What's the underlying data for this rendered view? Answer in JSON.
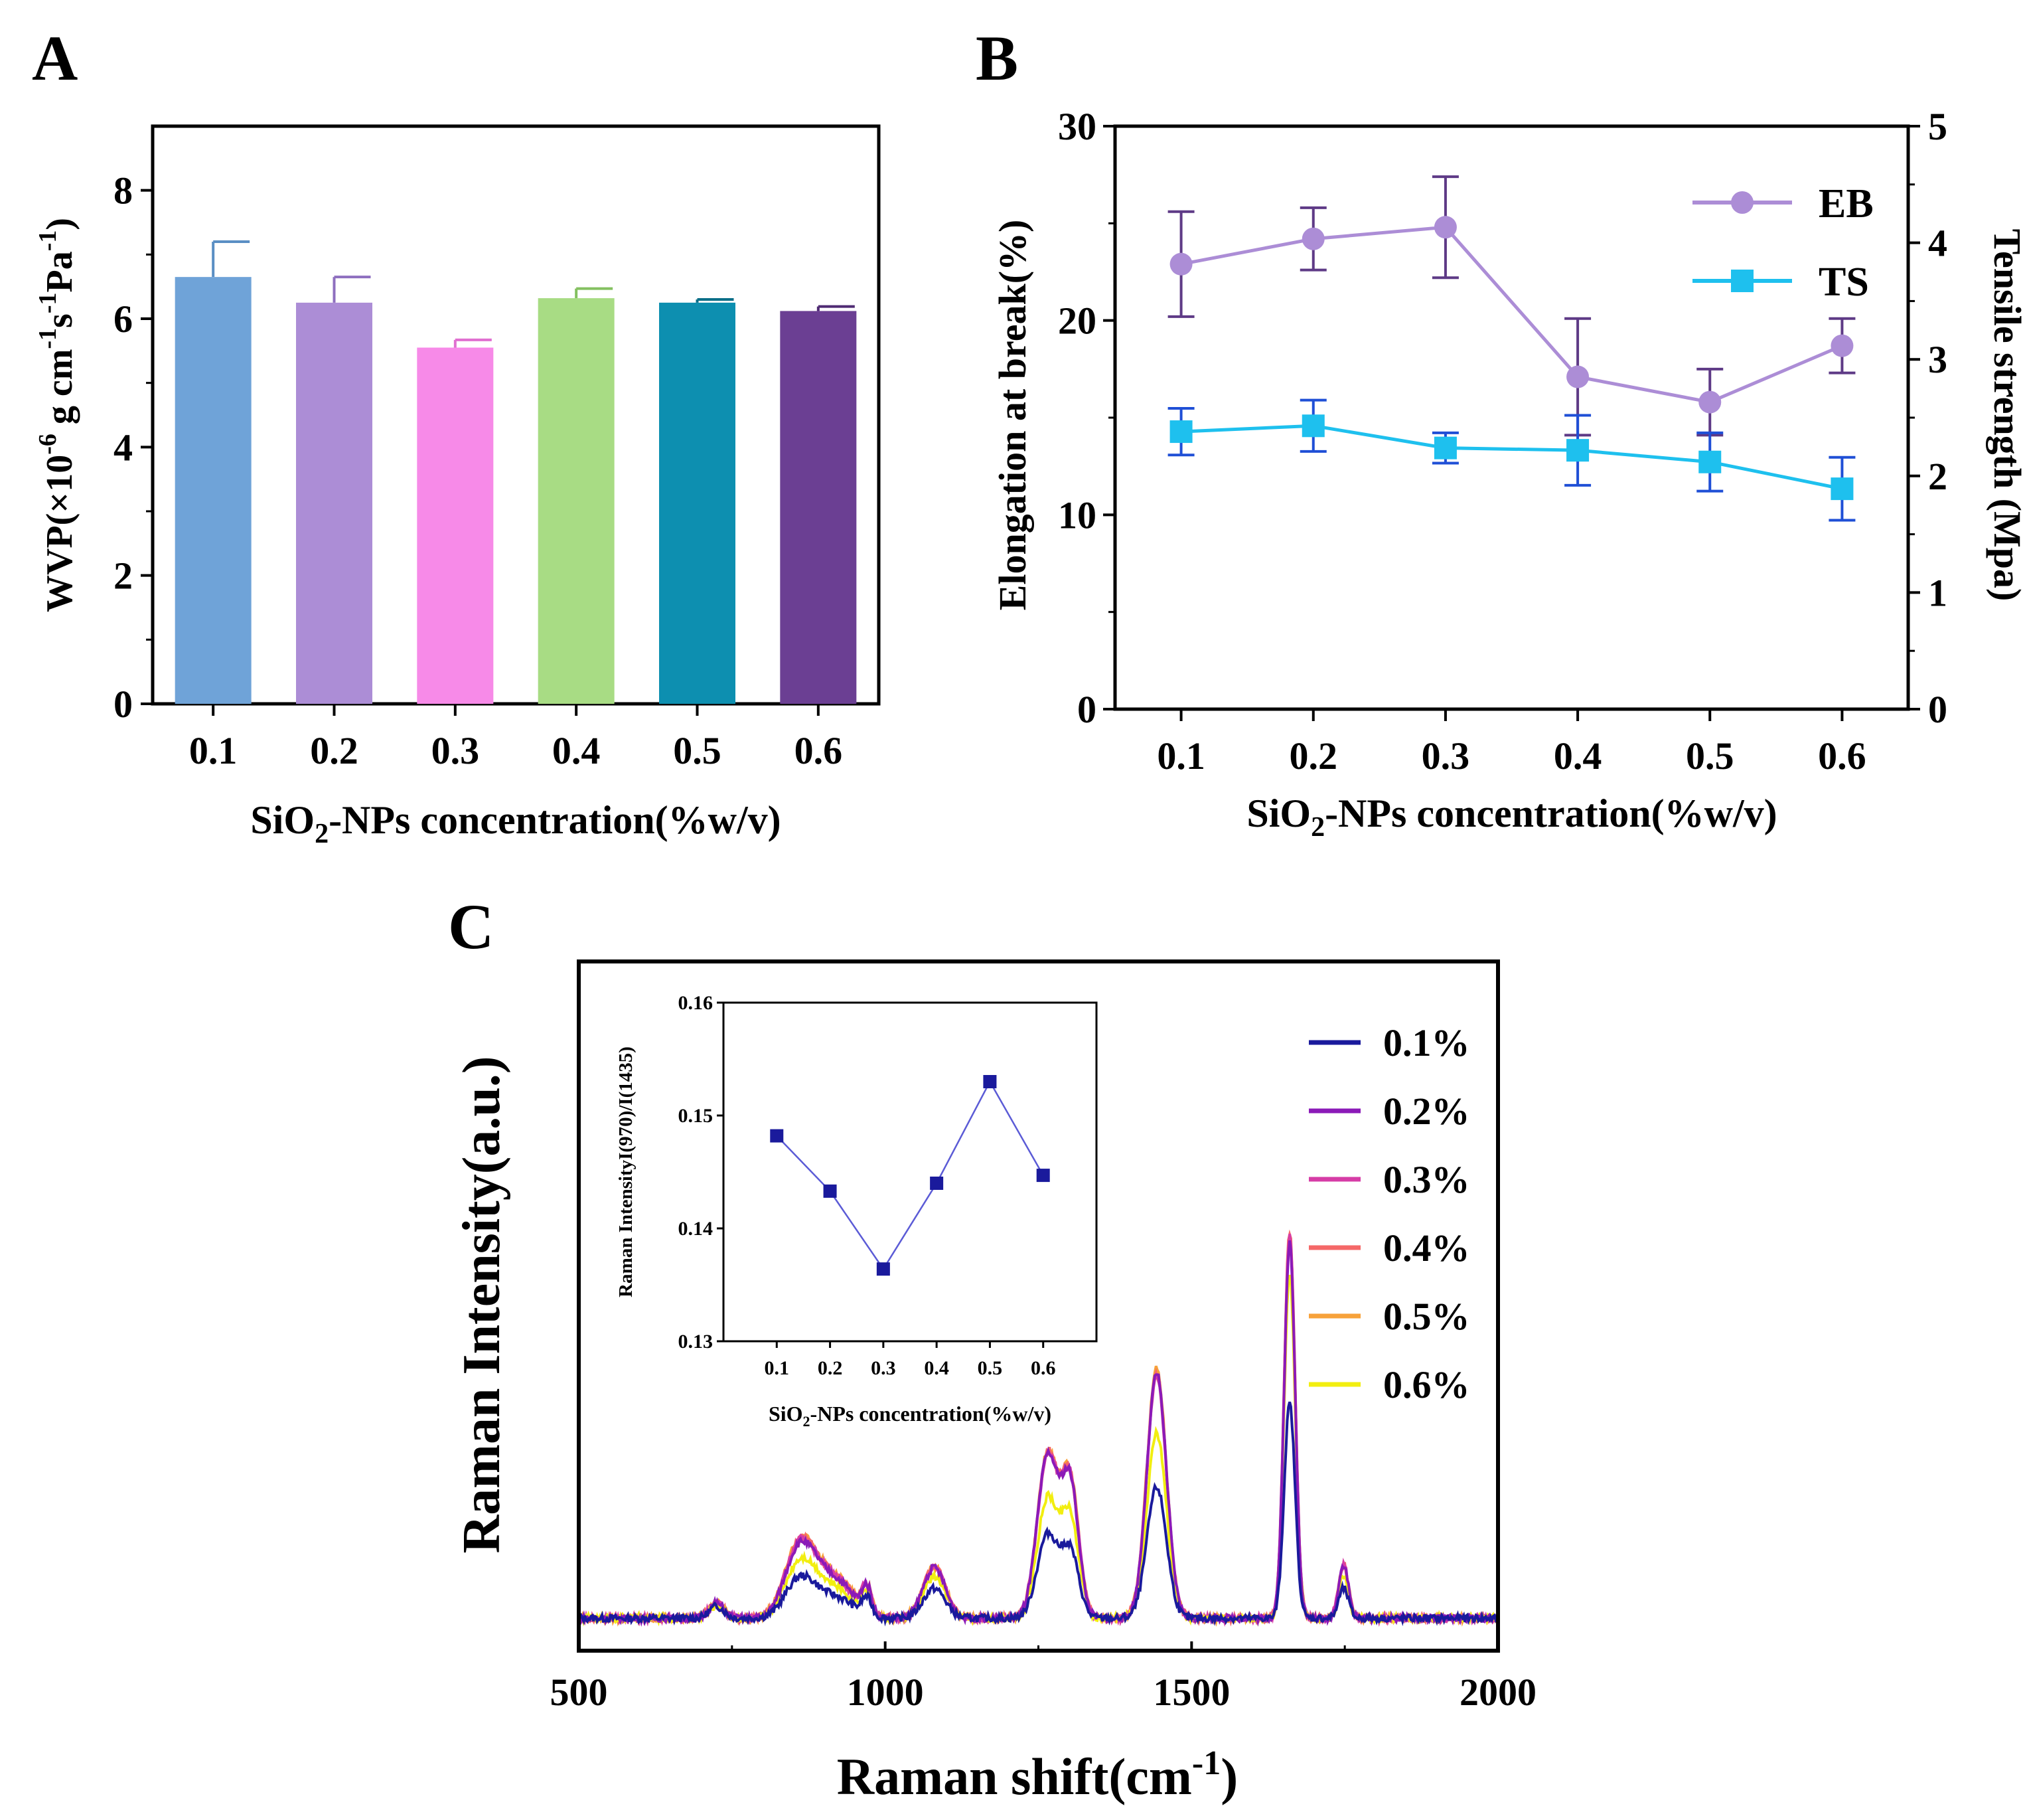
{
  "panels": [
    {
      "label": "A"
    },
    {
      "label": "B"
    },
    {
      "label": "C"
    }
  ],
  "chart_data": [
    {
      "panel": "A",
      "type": "bar",
      "categories": [
        "0.1",
        "0.2",
        "0.3",
        "0.4",
        "0.5",
        "0.6"
      ],
      "values": [
        6.65,
        6.25,
        5.55,
        6.32,
        6.25,
        6.12
      ],
      "errors": [
        0.55,
        0.4,
        0.12,
        0.15,
        0.05,
        0.07
      ],
      "colors": [
        "#6fa3d8",
        "#ac8dd6",
        "#f78ae8",
        "#a8dc84",
        "#0d8fb0",
        "#6b3f93"
      ],
      "error_colors": [
        "#5a8fc4",
        "#8e6fbf",
        "#e06fd0",
        "#84c060",
        "#0a6e88",
        "#4f2a73"
      ],
      "title": "",
      "xlabel": "SiO2-NPs concentration(%w/v)",
      "ylabel": "WVP(×10-6 g cm-1s-1Pa-1)",
      "ylim": [
        0,
        9
      ],
      "yticks": [
        0,
        2,
        4,
        6,
        8
      ]
    },
    {
      "panel": "B",
      "type": "line",
      "categories": [
        "0.1",
        "0.2",
        "0.3",
        "0.4",
        "0.5",
        "0.6"
      ],
      "series": [
        {
          "name": "EB",
          "axis": "left",
          "values": [
            22.9,
            24.2,
            24.8,
            17.1,
            15.8,
            18.7
          ],
          "errors": [
            2.7,
            1.6,
            2.6,
            3.0,
            1.7,
            1.4
          ],
          "color": "#ac8dd6",
          "error_color": "#5e3a86",
          "marker": "circle"
        },
        {
          "name": "TS",
          "axis": "right",
          "values": [
            2.38,
            2.43,
            2.24,
            2.22,
            2.12,
            1.89
          ],
          "errors": [
            0.2,
            0.22,
            0.13,
            0.3,
            0.25,
            0.27
          ],
          "color": "#1ec0ee",
          "error_color": "#1f4fd6",
          "marker": "square"
        }
      ],
      "xlabel": "SiO2-NPs concentration(%w/v)",
      "ylabel_left": "Elongation at break(%)",
      "ylabel_right": "Tensile strength (Mpa)",
      "ylim_left": [
        0,
        30
      ],
      "yticks_left": [
        0,
        10,
        20,
        30
      ],
      "ylim_right": [
        0,
        5
      ],
      "yticks_right": [
        0,
        1,
        2,
        3,
        4,
        5
      ],
      "legend_position": "top-right"
    },
    {
      "panel": "C",
      "type": "line",
      "xlabel": "Raman shift(cm-1)",
      "ylabel": "Raman Intensity(a.u.)",
      "xlim": [
        500,
        2000
      ],
      "xticks": [
        500,
        1000,
        1500,
        2000
      ],
      "legend_position": "top-right",
      "baseline": 0.05,
      "peaks": [
        {
          "center": 725,
          "width": 12
        },
        {
          "center": 855,
          "width": 22
        },
        {
          "center": 880,
          "width": 28
        },
        {
          "center": 930,
          "width": 25
        },
        {
          "center": 970,
          "width": 8
        },
        {
          "center": 1080,
          "width": 18
        },
        {
          "center": 1265,
          "width": 17
        },
        {
          "center": 1302,
          "width": 14
        },
        {
          "center": 1443,
          "width": 16
        },
        {
          "center": 1660,
          "width": 9
        },
        {
          "center": 1748,
          "width": 8
        }
      ],
      "series": [
        {
          "name": "0.1%",
          "color": "#1a1a9c",
          "amplitudes": [
            0.02,
            0.04,
            0.04,
            0.025,
            0.03,
            0.05,
            0.14,
            0.11,
            0.22,
            0.36,
            0.05
          ]
        },
        {
          "name": "0.2%",
          "color": "#8b1ab8",
          "amplitudes": [
            0.025,
            0.07,
            0.075,
            0.045,
            0.045,
            0.085,
            0.27,
            0.22,
            0.41,
            0.63,
            0.09
          ]
        },
        {
          "name": "0.3%",
          "color": "#d63ca6",
          "amplitudes": [
            0.025,
            0.072,
            0.078,
            0.046,
            0.045,
            0.086,
            0.272,
            0.222,
            0.405,
            0.64,
            0.09
          ]
        },
        {
          "name": "0.4%",
          "color": "#f56868",
          "amplitudes": [
            0.025,
            0.073,
            0.079,
            0.047,
            0.046,
            0.087,
            0.274,
            0.224,
            0.41,
            0.65,
            0.09
          ]
        },
        {
          "name": "0.5%",
          "color": "#f7a23a",
          "amplitudes": [
            0.026,
            0.075,
            0.08,
            0.048,
            0.046,
            0.088,
            0.276,
            0.226,
            0.42,
            0.64,
            0.092
          ]
        },
        {
          "name": "0.6%",
          "color": "#f2ee10",
          "amplitudes": [
            0.022,
            0.055,
            0.06,
            0.035,
            0.038,
            0.07,
            0.2,
            0.165,
            0.31,
            0.58,
            0.072
          ]
        }
      ],
      "inset": {
        "type": "line",
        "categories": [
          "0.1",
          "0.2",
          "0.3",
          "0.4",
          "0.5",
          "0.6"
        ],
        "values": [
          0.1482,
          0.1433,
          0.1364,
          0.144,
          0.153,
          0.1447
        ],
        "color": "#1a1a9c",
        "line_color": "#5b5bd6",
        "xlabel": "SiO2-NPs concentration(%w/v)",
        "ylabel": "Raman IntensityI(970)/I(1435)",
        "ylim": [
          0.13,
          0.16
        ],
        "yticks": [
          "0.13",
          "0.14",
          "0.15",
          "0.16"
        ]
      }
    }
  ]
}
